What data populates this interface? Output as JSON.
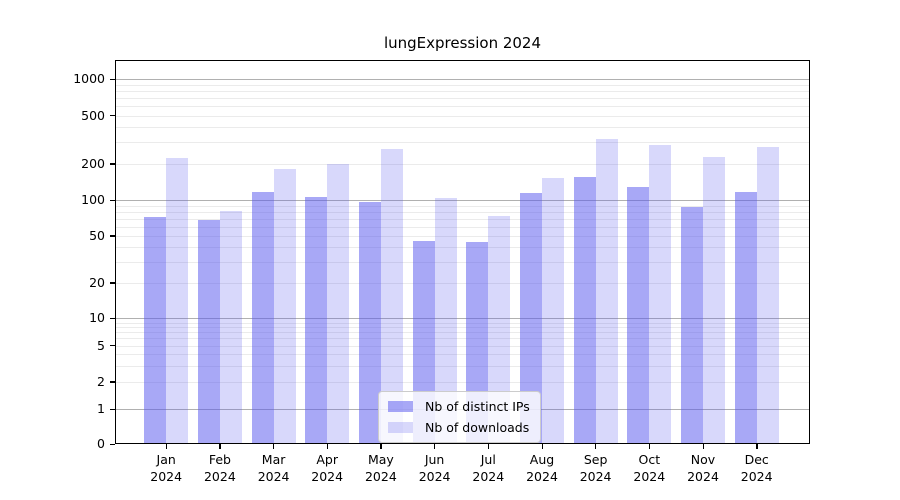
{
  "window": {
    "title": "lungExpression 2024"
  },
  "chart_data": {
    "type": "bar",
    "title": "lungExpression 2024",
    "categories": [
      "Jan 2024",
      "Feb 2024",
      "Mar 2024",
      "Apr 2024",
      "May 2024",
      "Jun 2024",
      "Jul 2024",
      "Aug 2024",
      "Sep 2024",
      "Oct 2024",
      "Nov 2024",
      "Dec 2024"
    ],
    "series": [
      {
        "name": "Nb of distinct IPs",
        "color": "rgba(88,88,238,0.52)",
        "values": [
          72,
          68,
          118,
          107,
          97,
          45,
          44,
          115,
          155,
          129,
          87,
          117
        ]
      },
      {
        "name": "Nb of downloads",
        "color": "rgba(88,88,238,0.23)",
        "values": [
          223,
          82,
          183,
          201,
          266,
          105,
          73,
          152,
          321,
          287,
          227,
          273
        ]
      }
    ],
    "xlabel": "",
    "ylabel": "",
    "yscale": "symlog",
    "yticks": [
      0,
      1,
      2,
      5,
      10,
      20,
      50,
      100,
      200,
      500,
      1000
    ],
    "ylim": [
      0,
      1400
    ],
    "grid": true,
    "grid_major_color": "#b0b0b0",
    "grid_minor_color": "#ebebeb",
    "legend_position": "lower center",
    "legend": [
      "Nb of distinct IPs",
      "Nb of downloads"
    ]
  }
}
